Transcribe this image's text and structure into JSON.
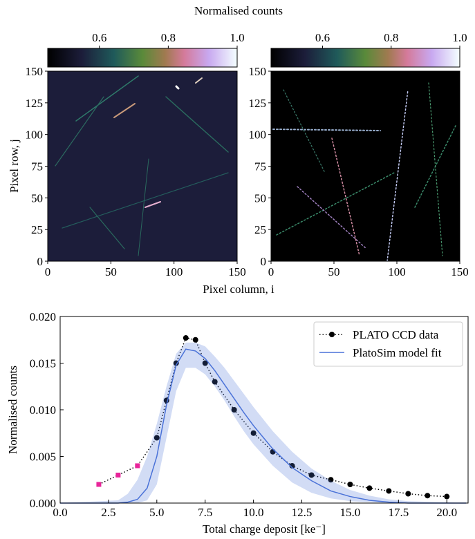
{
  "chart_data": [
    {
      "type": "heatmap",
      "colorbar_label": "Normalised counts",
      "xlabel": "Pixel column, i",
      "ylabel": "Pixel row, j",
      "xlim": [
        0,
        150
      ],
      "ylim": [
        0,
        150
      ],
      "xticks": [
        0,
        50,
        100,
        150
      ],
      "yticks": [
        0,
        25,
        50,
        75,
        100,
        125,
        150
      ],
      "clim": [
        0.45,
        1.0
      ],
      "cticks": [
        0.6,
        0.8,
        {
          "value": 1.0,
          "label": "1.0"
        }
      ],
      "background": "#1c1d3a"
    },
    {
      "type": "heatmap",
      "xlim": [
        0,
        150
      ],
      "ylim": [
        0,
        150
      ],
      "xticks": [
        0,
        50,
        100,
        150
      ],
      "yticks": [
        0,
        25,
        50,
        75,
        100,
        125,
        150
      ],
      "clim": [
        0.45,
        1.0
      ],
      "cticks": [
        0.6,
        0.8,
        {
          "value": 1.0,
          "label": "1.0"
        }
      ],
      "background": "#000000"
    },
    {
      "type": "line",
      "xlabel": "Total charge deposit [ke⁻]",
      "ylabel": "Normalised counts",
      "xlim": [
        0,
        21.1
      ],
      "ylim": [
        0,
        0.02
      ],
      "xticks": [
        {
          "value": 0,
          "label": "0.0"
        },
        2.5,
        {
          "value": 5,
          "label": "5.0"
        },
        7.5,
        {
          "value": 10,
          "label": "10.0"
        },
        12.5,
        {
          "value": 15,
          "label": "15.0"
        },
        17.5,
        {
          "value": 20,
          "label": "20.0"
        }
      ],
      "yticks": [
        {
          "value": 0,
          "label": "0.000"
        },
        {
          "value": 0.005,
          "label": "0.005"
        },
        {
          "value": 0.01,
          "label": "0.010"
        },
        {
          "value": 0.015,
          "label": "0.015"
        },
        {
          "value": 0.02,
          "label": "0.020"
        }
      ],
      "legend": "upper right",
      "series": [
        {
          "name": "PLATO CCD data",
          "color": "#000000",
          "style": "dotted",
          "x": [
            2,
            3,
            4,
            5,
            5.5,
            6,
            6.5,
            7,
            7.5,
            8,
            9,
            10,
            11,
            12,
            13,
            14,
            15,
            16,
            17,
            18,
            19,
            20
          ],
          "values": [
            0.002,
            0.003,
            0.004,
            0.007,
            0.011,
            0.015,
            0.0177,
            0.0175,
            0.015,
            0.013,
            0.01,
            0.0075,
            0.0055,
            0.004,
            0.003,
            0.0025,
            0.002,
            0.0016,
            0.0013,
            0.001,
            0.0008,
            0.0007
          ],
          "markers": [
            "square",
            "square",
            "square",
            "circle",
            "circle",
            "circle",
            "circle",
            "circle",
            "circle",
            "circle",
            "circle",
            "circle",
            "circle",
            "circle",
            "circle",
            "circle",
            "circle",
            "circle",
            "circle",
            "circle",
            "circle",
            "circle"
          ],
          "marker_colors": [
            "#e8259a",
            "#e8259a",
            "#e8259a",
            "#000000",
            "#000000",
            "#000000",
            "#000000",
            "#000000",
            "#000000",
            "#000000",
            "#000000",
            "#000000",
            "#000000",
            "#000000",
            "#000000",
            "#000000",
            "#000000",
            "#000000",
            "#000000",
            "#000000",
            "#000000",
            "#000000"
          ]
        },
        {
          "name": "PlatoSim model fit",
          "color": "#4a72d8",
          "style": "solid",
          "x": [
            0,
            3,
            3.5,
            4,
            4.5,
            5,
            5.5,
            6,
            6.5,
            7,
            7.5,
            8,
            8.5,
            9,
            9.5,
            10,
            11,
            12,
            13,
            14,
            15,
            16,
            17,
            18,
            21
          ],
          "values": [
            0,
            0,
            0.0001,
            0.0004,
            0.0016,
            0.005,
            0.0105,
            0.0148,
            0.0165,
            0.0163,
            0.0155,
            0.0142,
            0.0127,
            0.0112,
            0.0097,
            0.0083,
            0.0058,
            0.0038,
            0.0024,
            0.0013,
            0.0007,
            0.0003,
            0.0001,
            0,
            0
          ],
          "lower": [
            0,
            0,
            0,
            0,
            0.0003,
            0.002,
            0.007,
            0.012,
            0.0145,
            0.0145,
            0.0138,
            0.0125,
            0.011,
            0.0093,
            0.0077,
            0.0063,
            0.004,
            0.0022,
            0.0011,
            0.0005,
            0.0002,
            0.0001,
            0,
            0,
            0
          ],
          "upper": [
            0,
            0.0003,
            0.001,
            0.0025,
            0.005,
            0.0085,
            0.0125,
            0.016,
            0.0172,
            0.0172,
            0.0168,
            0.0157,
            0.0145,
            0.0131,
            0.0117,
            0.0103,
            0.0077,
            0.0055,
            0.0037,
            0.0024,
            0.0014,
            0.0008,
            0.0004,
            0.0002,
            0
          ]
        }
      ]
    }
  ]
}
